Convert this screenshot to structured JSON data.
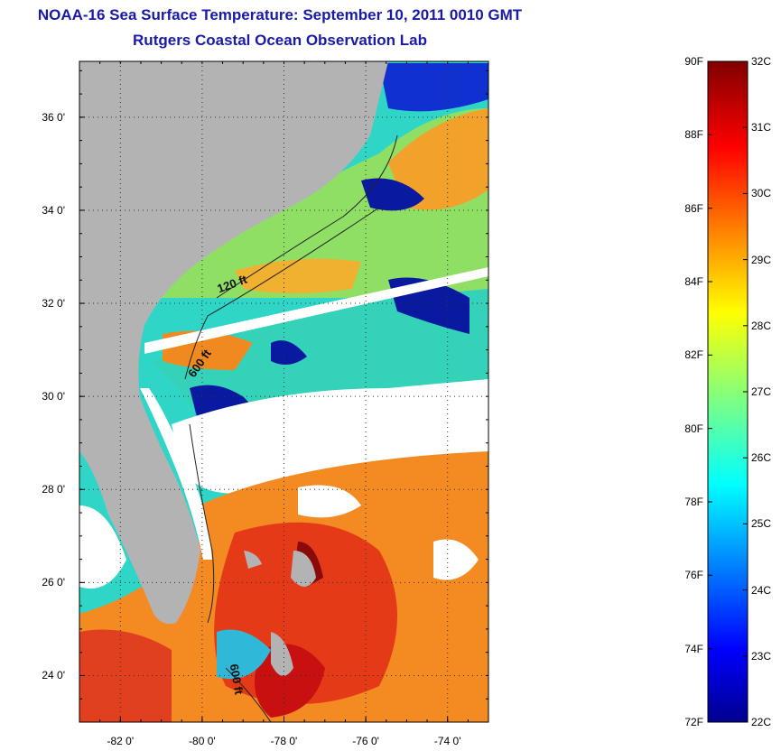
{
  "title": {
    "line1": "NOAA-16 Sea Surface Temperature:  September 10, 2011 0010 GMT",
    "line2": "Rutgers Coastal Ocean Observation Lab"
  },
  "map": {
    "lat_range": [
      23,
      37.2
    ],
    "lon_range": [
      -83,
      -73
    ],
    "y_ticks": [
      {
        "lat": 36,
        "label": "36 0'"
      },
      {
        "lat": 34,
        "label": "34 0'"
      },
      {
        "lat": 32,
        "label": "32 0'"
      },
      {
        "lat": 30,
        "label": "30 0'"
      },
      {
        "lat": 28,
        "label": "28 0'"
      },
      {
        "lat": 26,
        "label": "26 0'"
      },
      {
        "lat": 24,
        "label": "24 0'"
      }
    ],
    "x_ticks": [
      {
        "lon": -82,
        "label": "-82 0'"
      },
      {
        "lon": -80,
        "label": "-80 0'"
      },
      {
        "lon": -78,
        "label": "-78 0'"
      },
      {
        "lon": -76,
        "label": "-76 0'"
      },
      {
        "lon": -74,
        "label": "-74 0'"
      }
    ],
    "contour_labels": [
      {
        "text": "120 ft"
      },
      {
        "text": "600 ft"
      },
      {
        "text": "600 ft"
      }
    ],
    "colors": {
      "land": "#b3b3b3",
      "cloud": "#ffffff",
      "gap": "#ffffff"
    }
  },
  "colorbar": {
    "min_f": 72,
    "max_f": 90,
    "min_c": 22,
    "max_c": 32,
    "fahrenheit_labels": [
      "90F",
      "88F",
      "86F",
      "84F",
      "82F",
      "80F",
      "78F",
      "76F",
      "74F",
      "72F"
    ],
    "celsius_labels": [
      "32C",
      "31C",
      "30C",
      "29C",
      "28C",
      "27C",
      "26C",
      "25C",
      "24C",
      "23C",
      "22C"
    ],
    "colormap": "jet"
  }
}
